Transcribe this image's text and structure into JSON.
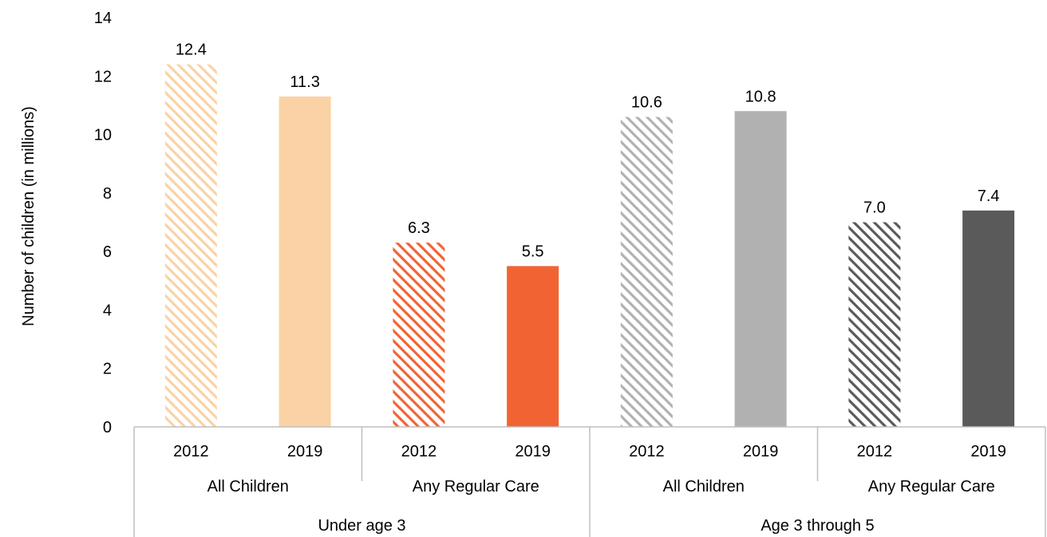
{
  "chart_data": {
    "type": "bar",
    "ylabel": "Number of children (in millions)",
    "ylim": [
      0,
      14
    ],
    "yticks": [
      0,
      2,
      4,
      6,
      8,
      10,
      12,
      14
    ],
    "grid": false,
    "legend": "none",
    "groups": [
      {
        "label": "Under age 3",
        "subgroups": [
          {
            "label": "All Children",
            "bars": [
              {
                "year": "2012",
                "value": 12.4,
                "value_label": "12.4",
                "color": "#fad2a5",
                "pattern": "hatched"
              },
              {
                "year": "2019",
                "value": 11.3,
                "value_label": "11.3",
                "color": "#fad2a5",
                "pattern": "solid"
              }
            ]
          },
          {
            "label": "Any Regular Care",
            "bars": [
              {
                "year": "2012",
                "value": 6.3,
                "value_label": "6.3",
                "color": "#f26334",
                "pattern": "hatched"
              },
              {
                "year": "2019",
                "value": 5.5,
                "value_label": "5.5",
                "color": "#f26334",
                "pattern": "solid"
              }
            ]
          }
        ]
      },
      {
        "label": "Age 3 through 5",
        "subgroups": [
          {
            "label": "All Children",
            "bars": [
              {
                "year": "2012",
                "value": 10.6,
                "value_label": "10.6",
                "color": "#b1b1b1",
                "pattern": "hatched"
              },
              {
                "year": "2019",
                "value": 10.8,
                "value_label": "10.8",
                "color": "#b1b1b1",
                "pattern": "solid"
              }
            ]
          },
          {
            "label": "Any Regular Care",
            "bars": [
              {
                "year": "2012",
                "value": 7.0,
                "value_label": "7.0",
                "color": "#5a5a5a",
                "pattern": "hatched"
              },
              {
                "year": "2019",
                "value": 7.4,
                "value_label": "7.4",
                "color": "#5a5a5a",
                "pattern": "solid"
              }
            ]
          }
        ]
      }
    ]
  }
}
